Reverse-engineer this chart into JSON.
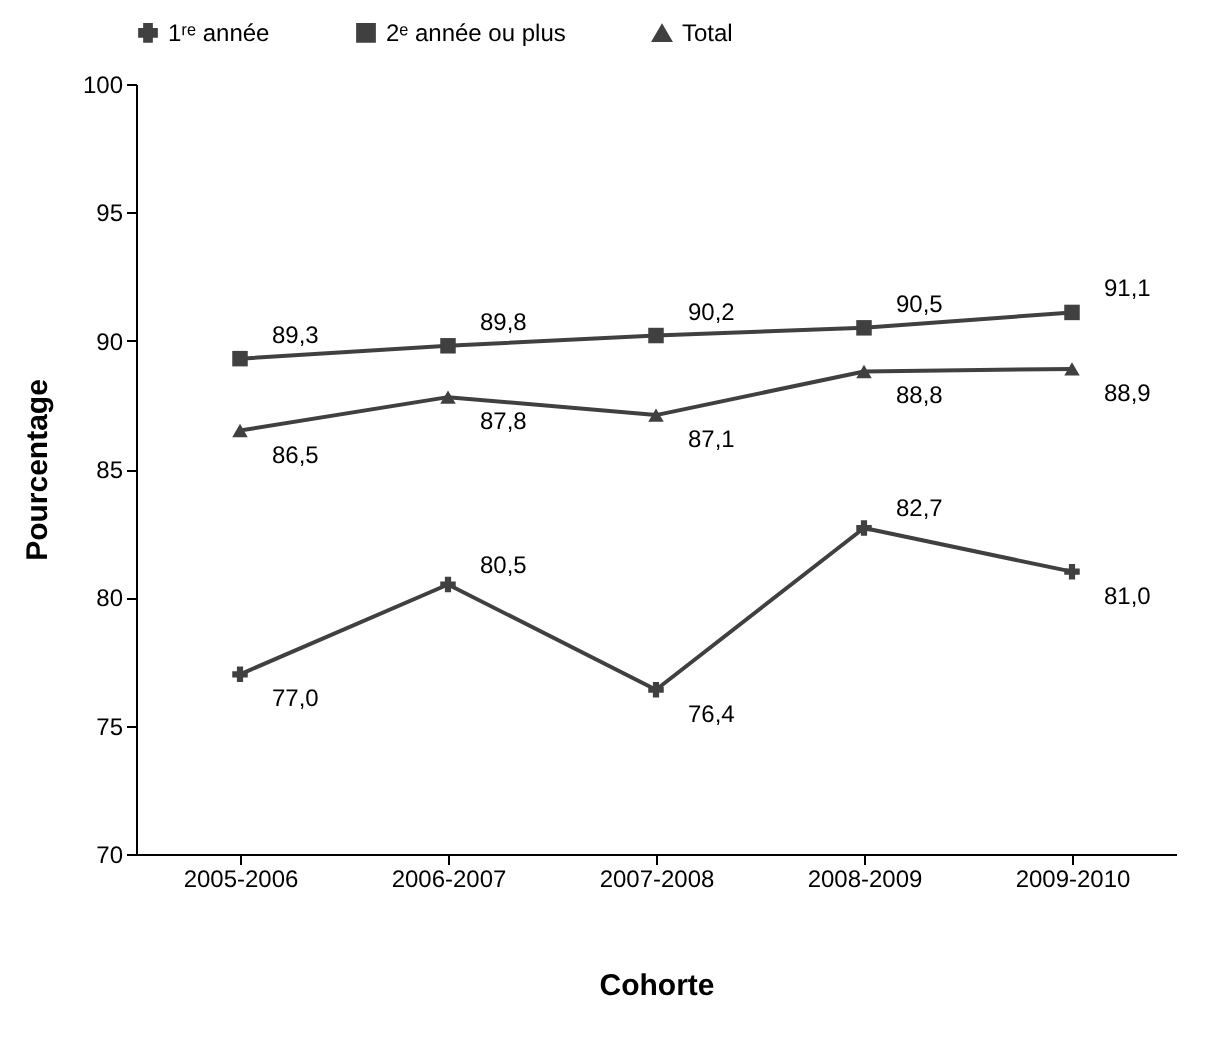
{
  "chart_data": {
    "type": "line",
    "xlabel": "Cohorte",
    "ylabel": "Pourcentage",
    "categories": [
      "2005-2006",
      "2006-2007",
      "2007-2008",
      "2008-2009",
      "2009-2010"
    ],
    "series": [
      {
        "name": "1ʳᵉ année",
        "color": "#404040",
        "marker": "cross",
        "values": [
          77.0,
          80.5,
          76.4,
          82.7,
          81.0
        ],
        "value_labels": [
          "77,0",
          "80,5",
          "76,4",
          "82,7",
          "81,0"
        ]
      },
      {
        "name": "2ᵉ année ou plus",
        "color": "#404040",
        "marker": "square",
        "values": [
          89.3,
          89.8,
          90.2,
          90.5,
          91.1
        ],
        "value_labels": [
          "89,3",
          "89,8",
          "90,2",
          "90,5",
          "91,1"
        ]
      },
      {
        "name": "Total",
        "color": "#404040",
        "marker": "triangle",
        "values": [
          86.5,
          87.8,
          87.1,
          88.8,
          88.9
        ],
        "value_labels": [
          "86,5",
          "87,8",
          "87,1",
          "88,8",
          "88,9"
        ]
      }
    ],
    "ylim": [
      70,
      100
    ],
    "yticks": [
      70,
      75,
      80,
      85,
      90,
      95,
      100
    ],
    "legend": "top",
    "grid": false
  }
}
